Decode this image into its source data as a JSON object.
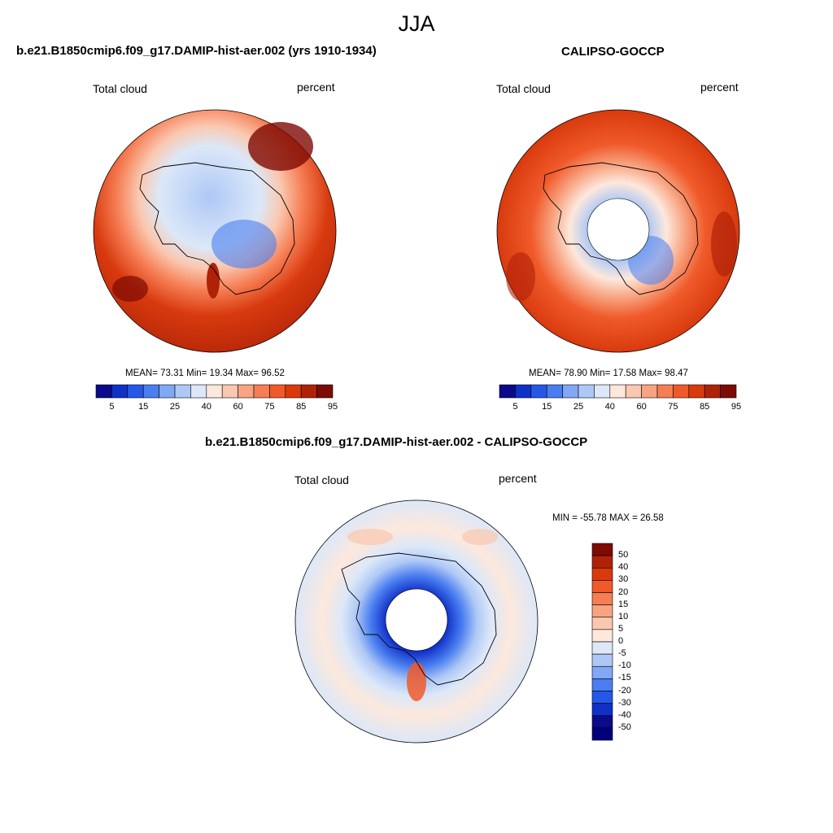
{
  "title": "JJA",
  "panels": [
    {
      "title": "b.e21.B1850cmip6.f09_g17.DAMIP-hist-aer.002 (yrs 1910-1934)",
      "left_label": "Total cloud",
      "right_label": "percent",
      "stats": "MEAN=  73.31  Min=  19.34  Max=  96.52"
    },
    {
      "title": "CALIPSO-GOCCP",
      "left_label": "Total cloud",
      "right_label": "percent",
      "stats": "MEAN=  78.90  Min=  17.58  Max=  98.47"
    },
    {
      "title": "b.e21.B1850cmip6.f09_g17.DAMIP-hist-aer.002 - CALIPSO-GOCCP",
      "left_label": "Total cloud",
      "right_label": "percent",
      "stats": "MIN = -55.78 MAX =  26.58"
    }
  ],
  "colorbar_top": {
    "ticks": [
      "5",
      "15",
      "25",
      "40",
      "60",
      "75",
      "85",
      "95"
    ],
    "colors": [
      "#0a0a8a",
      "#1030c8",
      "#2558e8",
      "#4a7ef0",
      "#80a8f4",
      "#aec8f6",
      "#dce8f8",
      "#fde8dc",
      "#fac8b0",
      "#f8a482",
      "#f67e54",
      "#f05a2a",
      "#d83a0e",
      "#b02208",
      "#7e0a04"
    ]
  },
  "colorbar_diff": {
    "ticks": [
      "50",
      "40",
      "30",
      "20",
      "15",
      "10",
      "5",
      "0",
      "-5",
      "-10",
      "-15",
      "-20",
      "-30",
      "-40",
      "-50"
    ],
    "colors": [
      "#7e0a04",
      "#b02208",
      "#d83a0e",
      "#f05a2a",
      "#f67e54",
      "#f8a482",
      "#fac8b0",
      "#fde8dc",
      "#dce8f8",
      "#aec8f6",
      "#80a8f4",
      "#4a7ef0",
      "#2558e8",
      "#1030c8",
      "#0a0a8a",
      "#00007e"
    ]
  }
}
